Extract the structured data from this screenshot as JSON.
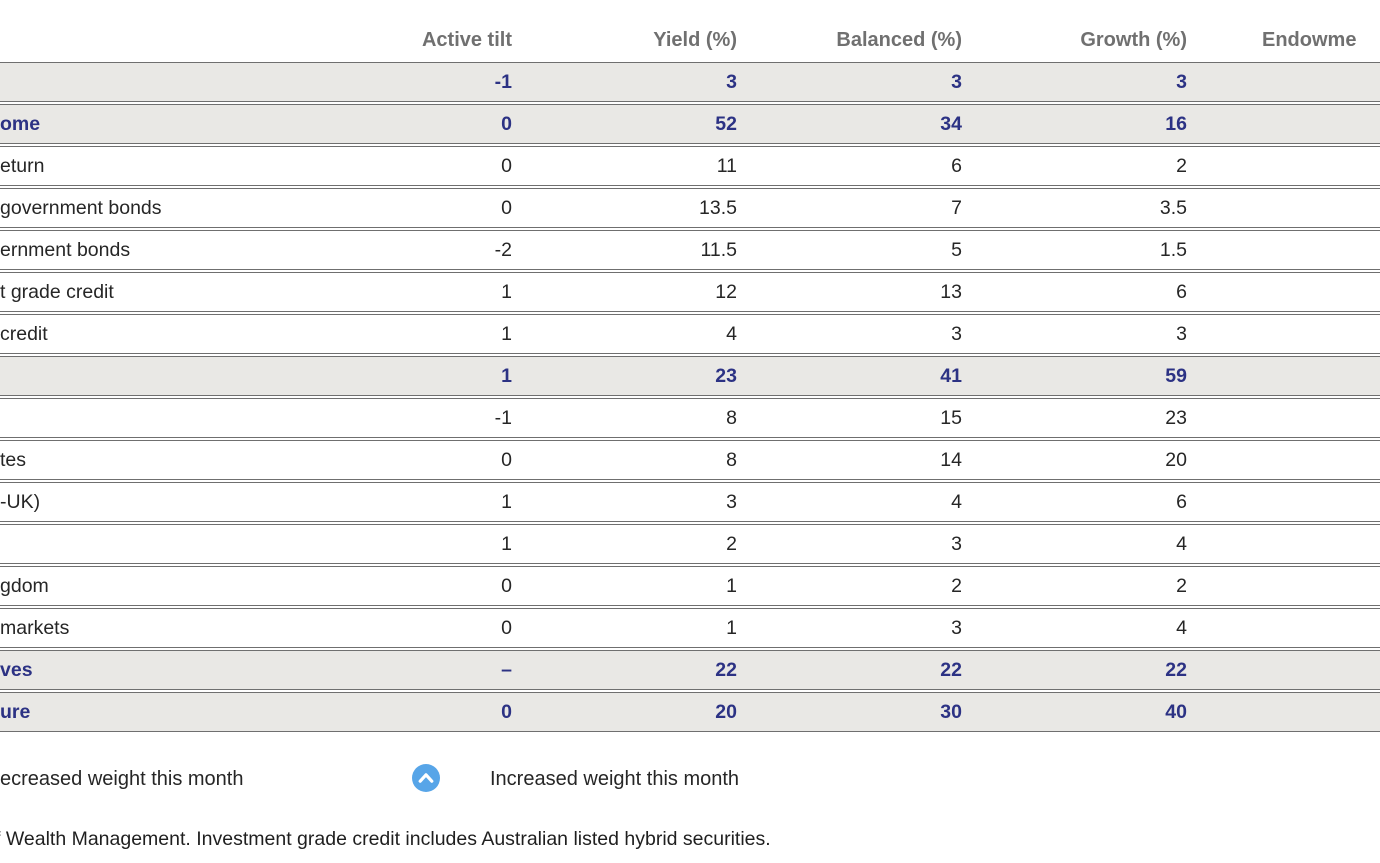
{
  "table": {
    "headers": [
      "",
      "Active tilt",
      "Yield (%)",
      "Balanced (%)",
      "Growth (%)",
      "Endowme"
    ],
    "rows": [
      {
        "label": "",
        "style": "section",
        "values": [
          "-1",
          "3",
          "3",
          "3"
        ]
      },
      {
        "label": "ome",
        "style": "section",
        "values": [
          "0",
          "52",
          "34",
          "16"
        ]
      },
      {
        "label": "eturn",
        "style": "normal",
        "values": [
          "0",
          "11",
          "6",
          "2"
        ]
      },
      {
        "label": "government bonds",
        "style": "normal",
        "values": [
          "0",
          "13.5",
          "7",
          "3.5"
        ]
      },
      {
        "label": "ernment bonds",
        "style": "normal",
        "values": [
          "-2",
          "11.5",
          "5",
          "1.5"
        ]
      },
      {
        "label": "t grade credit",
        "style": "normal",
        "values": [
          "1",
          "12",
          "13",
          "6"
        ]
      },
      {
        "label": "credit",
        "style": "normal",
        "values": [
          "1",
          "4",
          "3",
          "3"
        ]
      },
      {
        "label": "",
        "style": "section",
        "values": [
          "1",
          "23",
          "41",
          "59"
        ]
      },
      {
        "label": "",
        "style": "normal",
        "values": [
          "-1",
          "8",
          "15",
          "23"
        ]
      },
      {
        "label": "tes",
        "style": "normal",
        "values": [
          "0",
          "8",
          "14",
          "20"
        ]
      },
      {
        "label": "-UK)",
        "style": "normal",
        "values": [
          "1",
          "3",
          "4",
          "6"
        ]
      },
      {
        "label": "",
        "style": "normal",
        "values": [
          "1",
          "2",
          "3",
          "4"
        ]
      },
      {
        "label": "gdom",
        "style": "normal",
        "values": [
          "0",
          "1",
          "2",
          "2"
        ]
      },
      {
        "label": "markets",
        "style": "normal",
        "values": [
          "0",
          "1",
          "3",
          "4"
        ]
      },
      {
        "label": "ves",
        "style": "section",
        "values": [
          "–",
          "22",
          "22",
          "22"
        ]
      },
      {
        "label": "ure",
        "style": "section",
        "values": [
          "0",
          "20",
          "30",
          "40"
        ]
      }
    ]
  },
  "legend": {
    "decreased_label": "ecreased weight this month",
    "increased_label": "Increased weight this month",
    "increased_icon": "chevron-up-circle-icon"
  },
  "footnote": "f Wealth Management. Investment grade credit includes Australian listed hybrid securities.",
  "colors": {
    "section_text": "#2c3284",
    "section_row_bg": "#e9e8e5",
    "row_border": "#6f6f6f",
    "header_text": "#707070",
    "body_text": "#262626",
    "legend_icon_blue": "#57a5e8"
  }
}
